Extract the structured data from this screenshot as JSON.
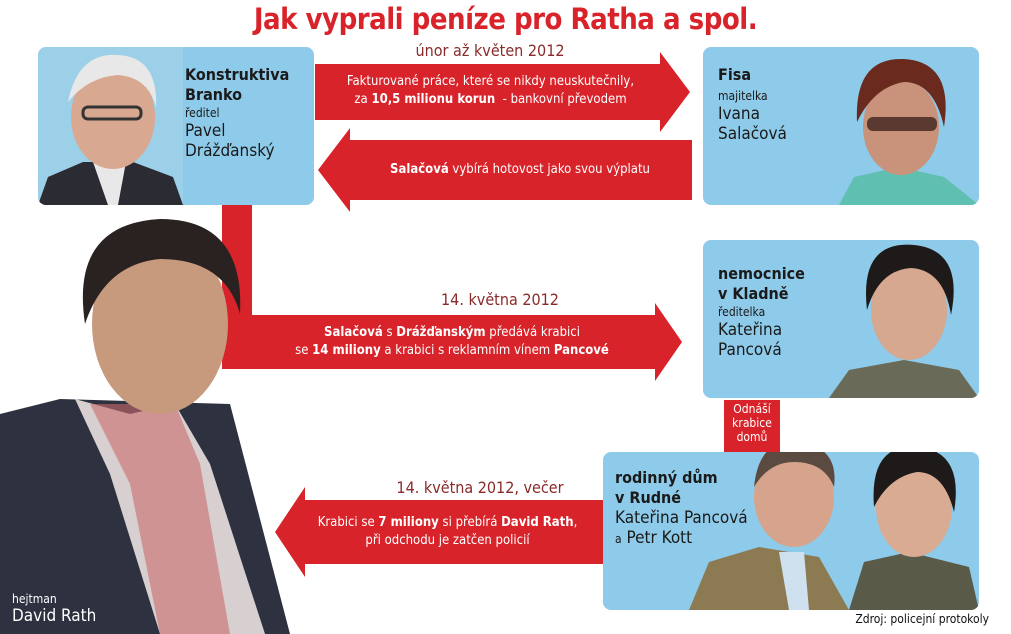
{
  "title": "Jak vyprali peníze pro Ratha a spol.",
  "colors": {
    "accent": "#d9232a",
    "box": "#8ecae9"
  },
  "nodes": {
    "branko": {
      "name1": "Konstruktiva",
      "name2": "Branko",
      "role": "ředitel",
      "person1": "Pavel",
      "person2": "Drážďanský"
    },
    "fisa": {
      "name1": "Fisa",
      "role": "majitelka",
      "person1": "Ivana",
      "person2": "Salačová"
    },
    "nemocnice": {
      "name1": "nemocnice",
      "name2": "v Kladně",
      "role": "ředitelka",
      "person1": "Kateřina",
      "person2": "Pancová"
    },
    "rudna": {
      "name1": "rodinný dům",
      "name2": "v Rudné",
      "person1": "Kateřina Pancová",
      "person2_a": "a",
      "person2": "Petr Kott"
    },
    "rath": {
      "role": "hejtman",
      "person": "David Rath"
    }
  },
  "flows": [
    {
      "date": "únor až květen 2012",
      "parts": [
        "Fakturované práce, které se nikdy neuskutečnily,",
        "za ",
        "10,5 milionu korun",
        "  - bankovní převodem"
      ]
    },
    {
      "parts": [
        "Salačová",
        " vybírá hotovost jako svou výplatu"
      ]
    },
    {
      "date": "14. května 2012",
      "parts": [
        "Salačová",
        " s ",
        "Drážďanským",
        " předává krabici",
        "se ",
        "14 miliony",
        " a krabici s reklamním vínem ",
        "Pancové"
      ]
    },
    {
      "date": "14. května 2012, večer",
      "parts": [
        "Krabici se ",
        "7 miliony",
        " si přebírá ",
        "David Rath",
        ",",
        "při odchodu je zatčen policií"
      ]
    }
  ],
  "carry_label": [
    "Odnáší",
    "krabice",
    "domů"
  ],
  "source": "Zdroj: policejní protokoly"
}
